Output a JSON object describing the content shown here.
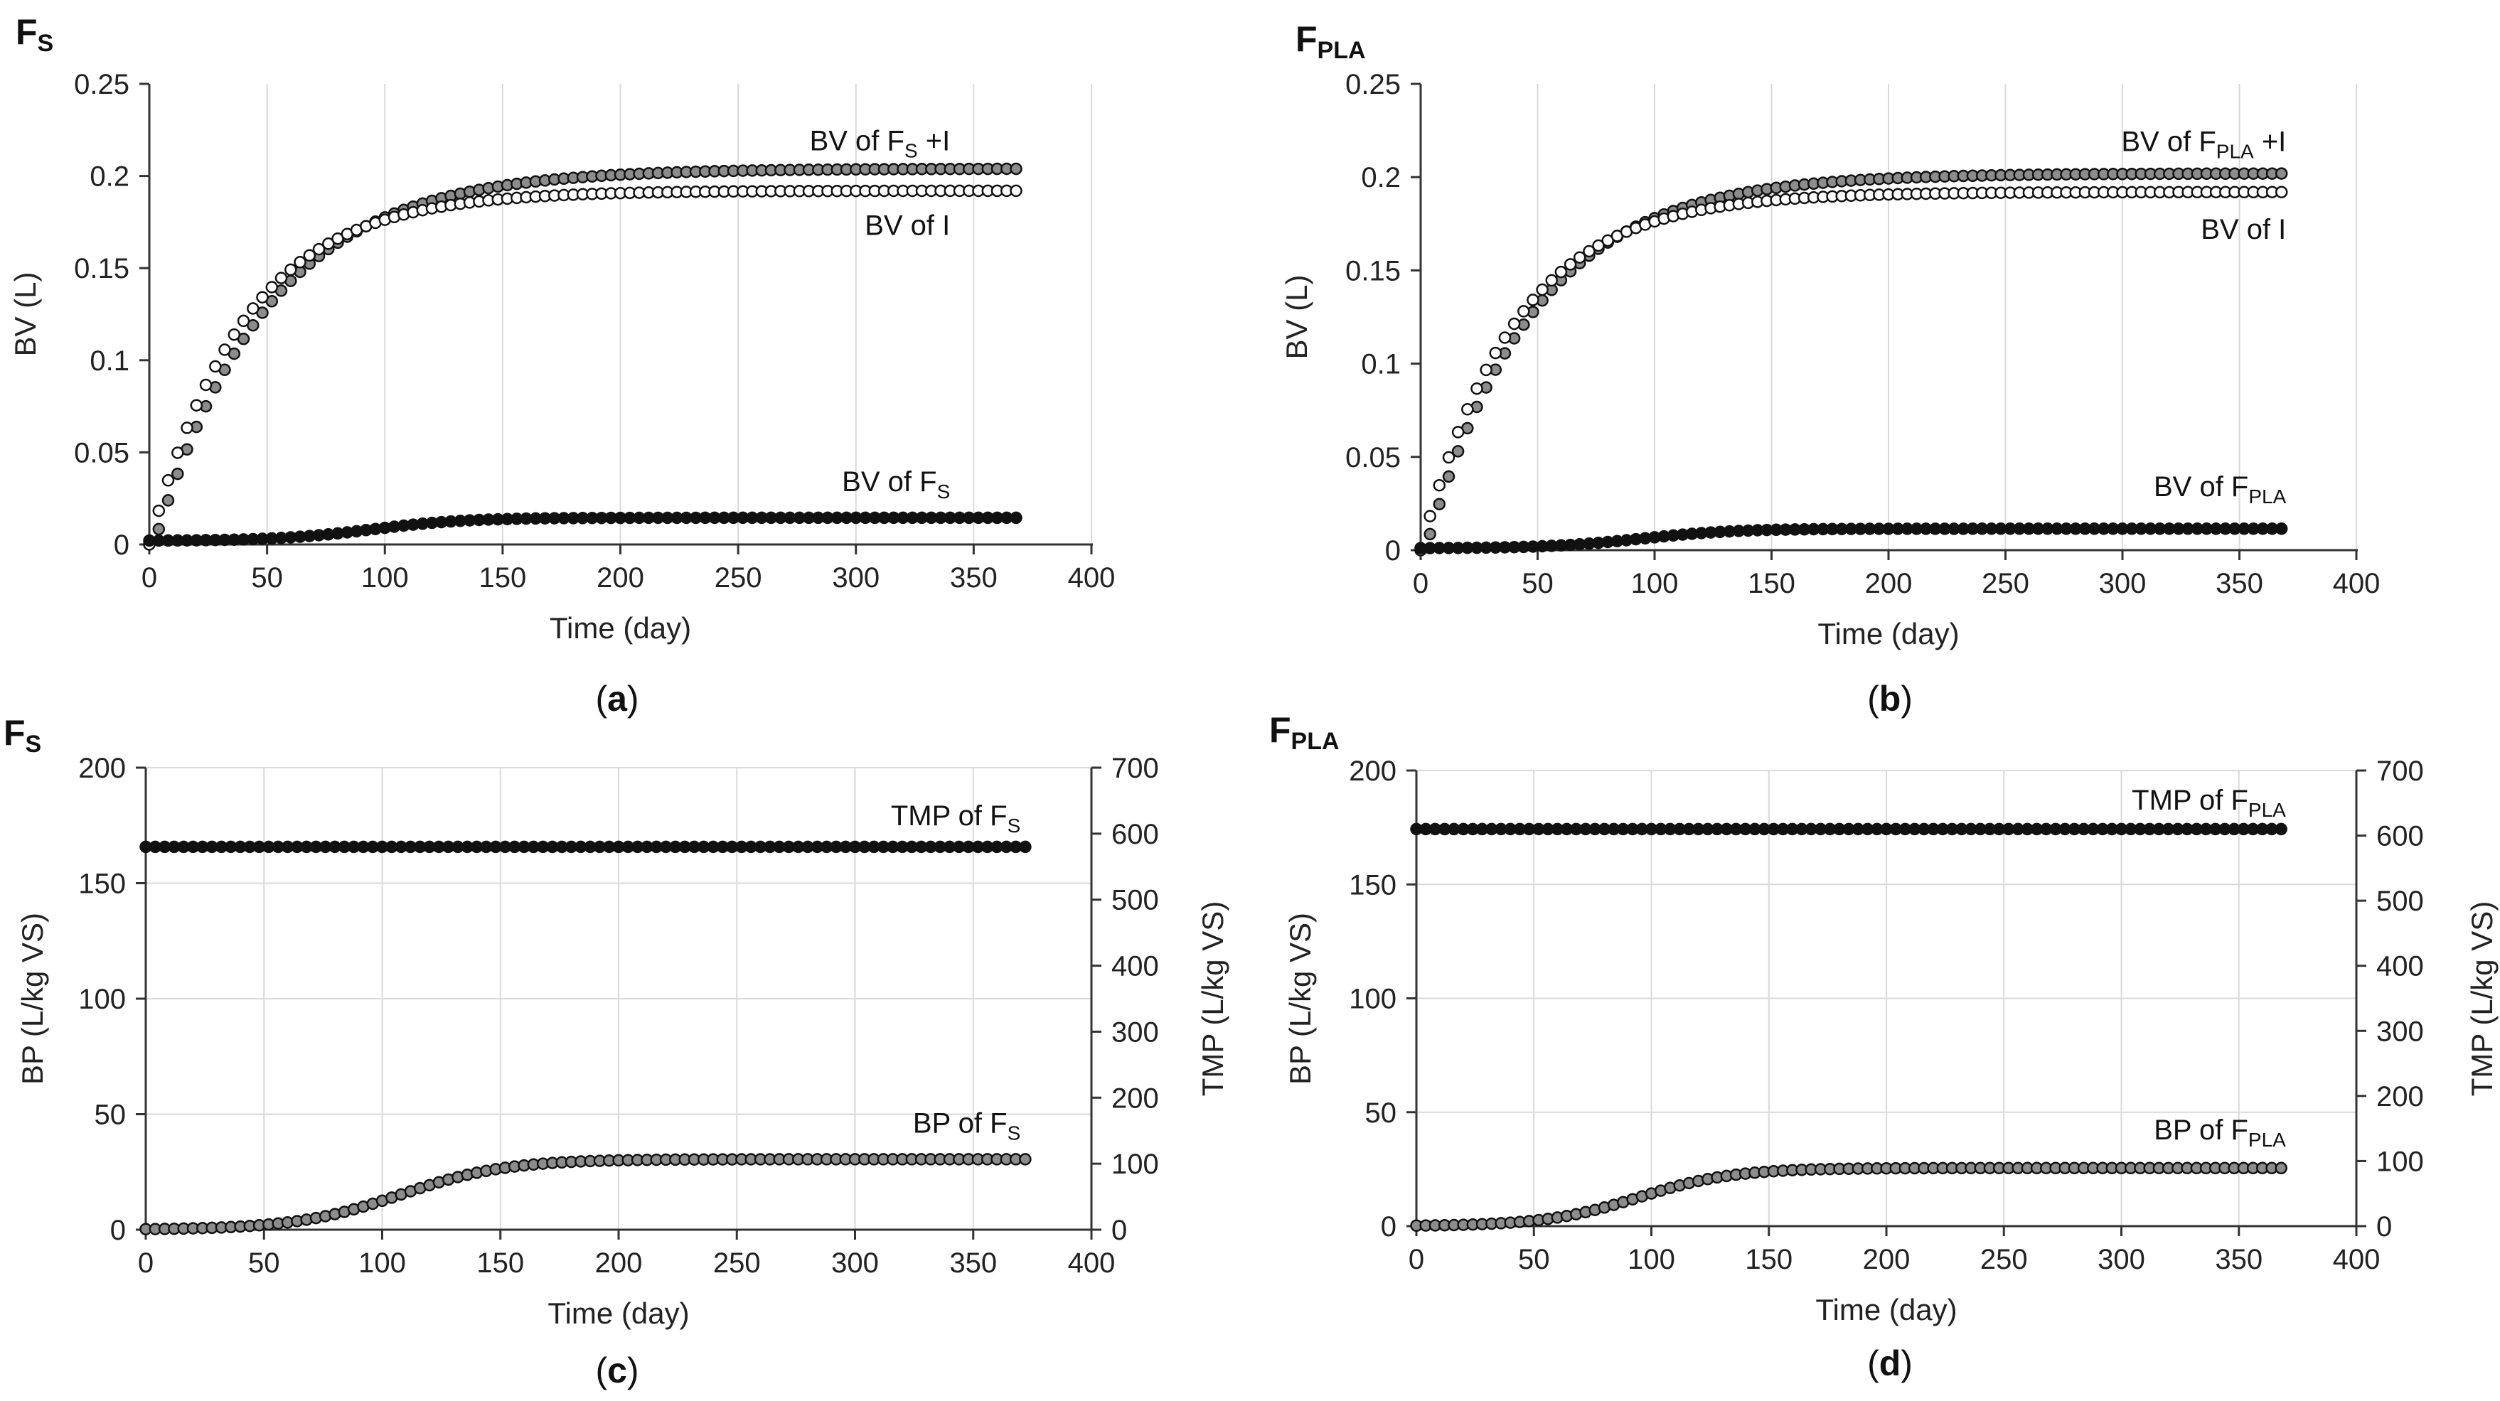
{
  "colors": {
    "filled": "#111111",
    "open_fill": "#ffffff",
    "grey_fill": "#8c8c8c",
    "outline": "#111111"
  },
  "chart_data": [
    {
      "type": "scatter",
      "panel_title": {
        "main": "F",
        "sub": "S"
      },
      "caption": {
        "open": "(",
        "letter": "a",
        "close": ")"
      },
      "xlabel": "Time  (day)",
      "ylabel": "BV (L)",
      "xlim": [
        0,
        400
      ],
      "ylim": [
        0,
        0.25
      ],
      "xticks": [
        0,
        50,
        100,
        150,
        200,
        250,
        300,
        350,
        400
      ],
      "yticks": [
        0,
        0.05,
        0.1,
        0.15,
        0.2,
        0.25
      ],
      "ytick_labels": [
        "0",
        "0.05",
        "0.1",
        "0.15",
        "0.2",
        "0.25"
      ],
      "grid": "vertical",
      "series": [
        {
          "name": "BV of F_S +I",
          "label": {
            "pre": "BV of F",
            "sub": "S",
            "post": " +I"
          },
          "label_at": [
            340,
            0.214
          ],
          "label_anchor": "end",
          "marker": "grey",
          "model": "exp",
          "params": {
            "A": 0.204,
            "tau": 48,
            "x0": 2
          },
          "x_start": 0,
          "x_end": 370,
          "step": 4
        },
        {
          "name": "BV of I",
          "label": {
            "pre": "BV of I",
            "sub": "",
            "post": ""
          },
          "label_at": [
            340,
            0.168
          ],
          "label_anchor": "end",
          "marker": "open",
          "model": "exp",
          "params": {
            "A": 0.192,
            "tau": 40,
            "x0": 0
          },
          "x_start": 0,
          "x_end": 370,
          "step": 4
        },
        {
          "name": "BV of F_S",
          "label": {
            "pre": "BV of F",
            "sub": "S",
            "post": ""
          },
          "label_at": [
            340,
            0.029
          ],
          "label_anchor": "end",
          "marker": "filled",
          "model": "sig",
          "params": {
            "A": 0.0125,
            "base": 0.002,
            "k": 0.05,
            "x0": 95
          },
          "x_start": 0,
          "x_end": 370,
          "step": 4
        }
      ]
    },
    {
      "type": "scatter",
      "panel_title": {
        "main": "F",
        "sub": "PLA"
      },
      "caption": {
        "open": "(",
        "letter": "b",
        "close": ")"
      },
      "xlabel": "Time  (day)",
      "ylabel": "BV (L)",
      "xlim": [
        0,
        400
      ],
      "ylim": [
        0,
        0.25
      ],
      "xticks": [
        0,
        50,
        100,
        150,
        200,
        250,
        300,
        350,
        400
      ],
      "yticks": [
        0,
        0.05,
        0.1,
        0.15,
        0.2,
        0.25
      ],
      "ytick_labels": [
        "0",
        "0.05",
        "0.1",
        "0.15",
        "0.2",
        "0.25"
      ],
      "grid": "vertical",
      "series": [
        {
          "name": "BV of F_PLA +I",
          "label": {
            "pre": "BV of F",
            "sub": "PLA",
            "post": " +I"
          },
          "label_at": [
            370,
            0.214
          ],
          "label_anchor": "end",
          "marker": "grey",
          "model": "exp",
          "params": {
            "A": 0.202,
            "tau": 46,
            "x0": 2
          },
          "x_start": 0,
          "x_end": 370,
          "step": 4
        },
        {
          "name": "BV of I",
          "label": {
            "pre": "BV of I",
            "sub": "",
            "post": ""
          },
          "label_at": [
            370,
            0.167
          ],
          "label_anchor": "end",
          "marker": "open",
          "model": "exp",
          "params": {
            "A": 0.192,
            "tau": 40,
            "x0": 0
          },
          "x_start": 0,
          "x_end": 370,
          "step": 4
        },
        {
          "name": "BV of F_PLA",
          "label": {
            "pre": "BV of F",
            "sub": "PLA",
            "post": ""
          },
          "label_at": [
            370,
            0.029
          ],
          "label_anchor": "end",
          "marker": "filled",
          "model": "sig",
          "params": {
            "A": 0.0105,
            "base": 0.001,
            "k": 0.05,
            "x0": 95
          },
          "x_start": 0,
          "x_end": 370,
          "step": 4
        }
      ]
    },
    {
      "type": "scatter",
      "panel_title": {
        "main": "F",
        "sub": "S"
      },
      "caption": {
        "open": "(",
        "letter": "c",
        "close": ")"
      },
      "xlabel": "Time  (day)",
      "ylabel": "BP (L/kg VS)",
      "y2label": "TMP (L/kg VS)",
      "xlim": [
        0,
        400
      ],
      "ylim": [
        0,
        200
      ],
      "y2lim": [
        0,
        700
      ],
      "xticks": [
        0,
        50,
        100,
        150,
        200,
        250,
        300,
        350,
        400
      ],
      "yticks": [
        0,
        50,
        100,
        150,
        200
      ],
      "ytick_labels": [
        "0",
        "50",
        "100",
        "150",
        "200"
      ],
      "y2ticks": [
        0,
        100,
        200,
        300,
        400,
        500,
        600,
        700
      ],
      "y2tick_labels": [
        "0",
        "100",
        "200",
        "300",
        "400",
        "500",
        "600",
        "700"
      ],
      "grid": "both",
      "series": [
        {
          "name": "TMP of F_S",
          "label": {
            "pre": "TMP of F",
            "sub": "S",
            "post": ""
          },
          "label_at": [
            370,
            613
          ],
          "label_anchor": "end",
          "axis": "y2",
          "marker": "filled",
          "model": "const",
          "params": {
            "c": 580
          },
          "x_start": 0,
          "x_end": 375,
          "step": 4
        },
        {
          "name": "BP of F_S",
          "label": {
            "pre": "BP of F",
            "sub": "S",
            "post": ""
          },
          "label_at": [
            370,
            42
          ],
          "label_anchor": "end",
          "axis": "y",
          "marker": "grey",
          "model": "sig",
          "params": {
            "A": 30.5,
            "base": 0,
            "k": 0.045,
            "x0": 108
          },
          "x_start": 0,
          "x_end": 375,
          "step": 4
        }
      ]
    },
    {
      "type": "scatter",
      "panel_title": {
        "main": "F",
        "sub": "PLA"
      },
      "caption": {
        "open": "(",
        "letter": "d",
        "close": ")"
      },
      "xlabel": "Time  (day)",
      "ylabel": "BP (L/kg VS)",
      "y2label": "TMP (L/kg VS)",
      "xlim": [
        0,
        400
      ],
      "ylim": [
        0,
        200
      ],
      "y2lim": [
        0,
        700
      ],
      "xticks": [
        0,
        50,
        100,
        150,
        200,
        250,
        300,
        350,
        400
      ],
      "yticks": [
        0,
        50,
        100,
        150,
        200
      ],
      "ytick_labels": [
        "0",
        "50",
        "100",
        "150",
        "200"
      ],
      "y2ticks": [
        0,
        100,
        200,
        300,
        400,
        500,
        600,
        700
      ],
      "y2tick_labels": [
        "0",
        "100",
        "200",
        "300",
        "400",
        "500",
        "600",
        "700"
      ],
      "grid": "both",
      "series": [
        {
          "name": "TMP of F_PLA",
          "label": {
            "pre": "TMP of F",
            "sub": "PLA",
            "post": ""
          },
          "label_at": [
            370,
            640
          ],
          "label_anchor": "end",
          "axis": "y2",
          "marker": "filled",
          "model": "const",
          "params": {
            "c": 610
          },
          "x_start": 0,
          "x_end": 370,
          "step": 4
        },
        {
          "name": "BP of F_PLA",
          "label": {
            "pre": "BP of F",
            "sub": "PLA",
            "post": ""
          },
          "label_at": [
            370,
            38
          ],
          "label_anchor": "end",
          "axis": "y",
          "marker": "grey",
          "model": "sig",
          "params": {
            "A": 25.5,
            "base": 0,
            "k": 0.05,
            "x0": 95
          },
          "x_start": 0,
          "x_end": 370,
          "step": 4
        }
      ]
    }
  ]
}
